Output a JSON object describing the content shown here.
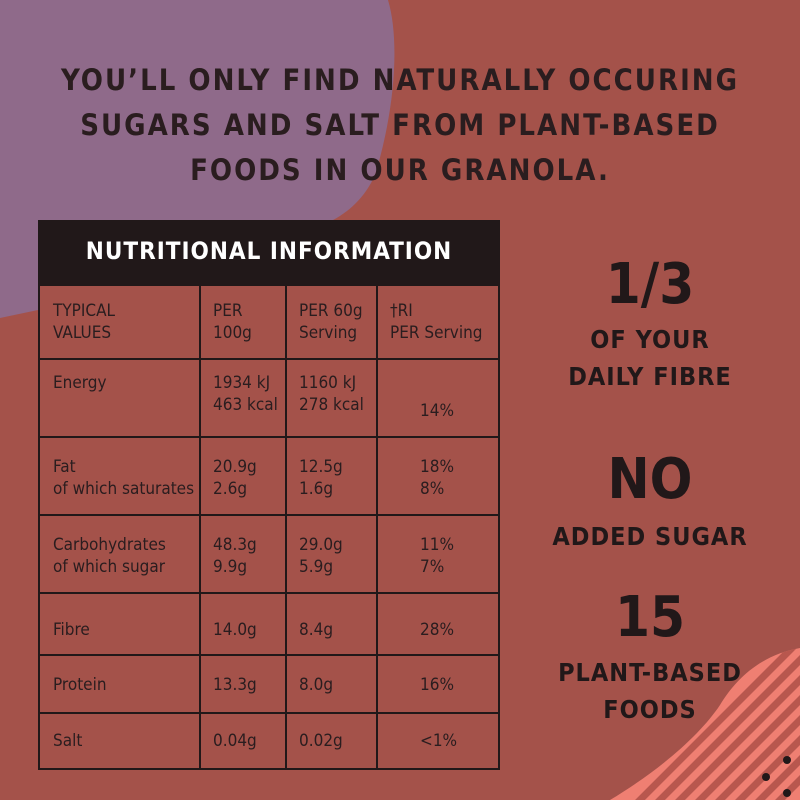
{
  "headline": [
    "YOU’LL ONLY FIND NATURALLY OCCURING",
    "SUGARS AND SALT FROM PLANT-BASED",
    "FOODS IN OUR GRANOLA."
  ],
  "table": {
    "title": "NUTRITIONAL INFORMATION",
    "headers": [
      [
        "TYPICAL",
        "VALUES"
      ],
      [
        "PER",
        "100g"
      ],
      [
        "PER 60g",
        "Serving"
      ],
      [
        "†RI",
        "PER Serving"
      ]
    ],
    "rows": [
      {
        "nutrient": [
          "Energy"
        ],
        "per100": [
          "1934 kJ",
          "463 kcal"
        ],
        "per60": [
          "1160 kJ",
          "278 kcal"
        ],
        "ri": [
          "14%"
        ]
      },
      {
        "nutrient": [
          "Fat",
          "of which saturates"
        ],
        "per100": [
          "20.9g",
          "2.6g"
        ],
        "per60": [
          "12.5g",
          "1.6g"
        ],
        "ri": [
          "18%",
          "8%"
        ]
      },
      {
        "nutrient": [
          "Carbohydrates",
          "of which sugar"
        ],
        "per100": [
          "48.3g",
          "9.9g"
        ],
        "per60": [
          "29.0g",
          "5.9g"
        ],
        "ri": [
          "11%",
          "7%"
        ]
      },
      {
        "nutrient": [
          "Fibre"
        ],
        "per100": [
          "14.0g"
        ],
        "per60": [
          "8.4g"
        ],
        "ri": [
          "28%"
        ]
      },
      {
        "nutrient": [
          "Protein"
        ],
        "per100": [
          "13.3g"
        ],
        "per60": [
          "8.0g"
        ],
        "ri": [
          "16%"
        ]
      },
      {
        "nutrient": [
          "Salt"
        ],
        "per100": [
          "0.04g"
        ],
        "per60": [
          "0.02g"
        ],
        "ri": [
          "<1%"
        ]
      }
    ]
  },
  "highlights": [
    {
      "big": "1/3",
      "lines": [
        "OF YOUR",
        "DAILY FIBRE"
      ]
    },
    {
      "big": "NO",
      "lines": [
        "ADDED SUGAR"
      ]
    },
    {
      "big": "15",
      "lines": [
        "PLANT-BASED",
        "FOODS"
      ]
    }
  ],
  "colors": {
    "background": "#a4524a",
    "purple": "#8f6a8a",
    "pink": "#ef7f72",
    "dark": "#211819"
  }
}
